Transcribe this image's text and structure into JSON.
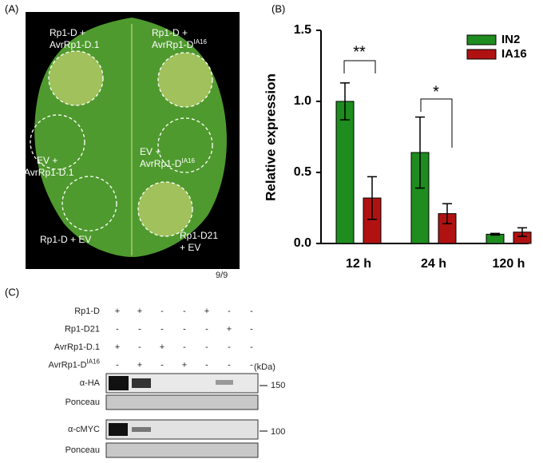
{
  "panel_a": {
    "tag": "(A)",
    "labels": [
      {
        "line1": "Rp1-D +",
        "line2": "AvrRp1-D.1"
      },
      {
        "line1": "Rp1-D +",
        "line2": "AvrRp1-D",
        "sup": "IA16"
      },
      {
        "line1": "EV +",
        "line2": "AvrRp1-D.1"
      },
      {
        "line1": "EV +",
        "line2": "AvrRp1-D",
        "sup": "IA16"
      },
      {
        "line1": "Rp1-D + EV"
      },
      {
        "line1": "Rp1-D21",
        "line2": "+ EV"
      }
    ],
    "count": "9/9"
  },
  "chart_data": {
    "type": "bar",
    "tag": "(B)",
    "y_label": "Relative expression",
    "categories": [
      "12 h",
      "24 h",
      "120 h"
    ],
    "series": [
      {
        "name": "IN2",
        "color": "#1e8c1e",
        "values": [
          1.0,
          0.64,
          0.065
        ],
        "errors": [
          0.13,
          0.25,
          0.006
        ]
      },
      {
        "name": "IA16",
        "color": "#b01212",
        "values": [
          0.32,
          0.21,
          0.08
        ],
        "errors": [
          0.15,
          0.07,
          0.03
        ]
      }
    ],
    "ylim": [
      0,
      1.5
    ],
    "yticks": [
      {
        "value": 0,
        "label": "0.0"
      },
      {
        "value": 0.5,
        "label": "0.5"
      },
      {
        "value": 1,
        "label": "1.0"
      },
      {
        "value": 1.5,
        "label": "1.5"
      }
    ],
    "annotations": [
      "**",
      "*"
    ],
    "legend": "upper right"
  },
  "panel_c": {
    "tag": "(C)",
    "rows": [
      {
        "label": "Rp1-D",
        "marks": [
          "+",
          "+",
          "-",
          "-",
          "+",
          "-",
          "-"
        ]
      },
      {
        "label": "Rp1-D21",
        "marks": [
          "-",
          "-",
          "-",
          "-",
          "-",
          "+",
          "-"
        ]
      },
      {
        "label": "AvrRp1-D.1",
        "marks": [
          "+",
          "-",
          "+",
          "-",
          "-",
          "-",
          "-"
        ]
      },
      {
        "label": "AvrRp1-D",
        "sup": "IA16",
        "marks": [
          "-",
          "+",
          "-",
          "+",
          "-",
          "-",
          "-"
        ]
      }
    ],
    "unit": "(kDa)",
    "blots": [
      {
        "label": "α-HA",
        "marker": "150"
      },
      {
        "label": "Ponceau"
      },
      {
        "label": "α-cMYC",
        "marker": "100"
      },
      {
        "label": "Ponceau"
      }
    ]
  }
}
